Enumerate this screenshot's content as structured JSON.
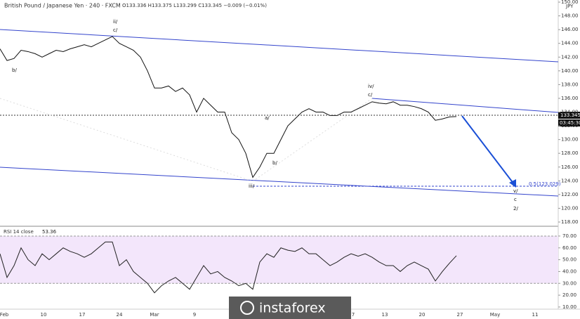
{
  "chart_data": {
    "type": "line",
    "title": "British Pound / Japanese Yen · 240 · FXCM",
    "ohlc_text": "O133.336 H133.375 L133.299 C133.345 −0.009 (−0.01%)",
    "currency": "JPY",
    "last_price_label": "133.345",
    "countdown": "03:45:30",
    "fib_label": "0.5(123.029)",
    "annotations": [
      "ii/",
      "c/",
      "b/",
      "iv/",
      "c/",
      "a/",
      "b/",
      "iii/",
      "v/",
      "c",
      "2/"
    ],
    "watermark": "instaforex",
    "xlabels": [
      "Feb",
      "10",
      "17",
      "24",
      "Mar",
      "9",
      "7",
      "13",
      "20",
      "27",
      "May",
      "11"
    ],
    "ylim": [
      117.59,
      150.31
    ],
    "yticks": [
      {
        "value": 118,
        "label": "118.00"
      },
      {
        "value": 120,
        "label": "120.00"
      },
      {
        "value": 122,
        "label": "122.00"
      },
      {
        "value": 124,
        "label": "124.00"
      },
      {
        "value": 126,
        "label": "126.00"
      },
      {
        "value": 128,
        "label": "128.00"
      },
      {
        "value": 130,
        "label": "130.00"
      },
      {
        "value": 132,
        "label": "132.00"
      },
      {
        "value": 134,
        "label": "134.00"
      },
      {
        "value": 136,
        "label": "136.00"
      },
      {
        "value": 138,
        "label": "138.00"
      },
      {
        "value": 140,
        "label": "140.00"
      },
      {
        "value": 142,
        "label": "142.00"
      },
      {
        "value": 144,
        "label": "144.00"
      },
      {
        "value": 146,
        "label": "146.00"
      },
      {
        "value": 148,
        "label": "148.00"
      },
      {
        "value": 150,
        "label": "150.00"
      }
    ],
    "series": [
      {
        "name": "GBPJPY",
        "color": "#111111",
        "values": [
          143.2,
          141.5,
          141.8,
          143,
          142.8,
          142.5,
          142,
          142.5,
          143,
          142.8,
          143.2,
          143.5,
          143.8,
          143.5,
          144,
          144.5,
          145,
          144,
          143.5,
          143,
          142,
          140,
          137.5,
          137.5,
          137.8,
          137,
          137.5,
          136.5,
          134,
          136,
          135,
          134,
          134,
          131,
          130,
          128,
          124.5,
          126,
          128,
          128,
          130,
          132,
          133,
          134,
          134.5,
          134,
          134,
          133.5,
          133.5,
          134,
          134,
          134.5,
          135,
          135.5,
          135.3,
          135.2,
          135.5,
          135,
          135,
          134.8,
          134.5,
          134,
          132.8,
          133,
          133.3,
          133.345
        ]
      }
    ],
    "rsi": {
      "title": "RSI 14 close",
      "last_label": "53.36",
      "color": "#222222",
      "band_color": "#f3e6fb",
      "ylim": [
        5.2,
        76.5
      ],
      "band": [
        30,
        70
      ],
      "yticks": [
        {
          "value": 10,
          "label": "10.00"
        },
        {
          "value": 20,
          "label": "20.00"
        },
        {
          "value": 30,
          "label": "30.00"
        },
        {
          "value": 40,
          "label": "40.00"
        },
        {
          "value": 50,
          "label": "50.00"
        },
        {
          "value": 60,
          "label": "60.00"
        },
        {
          "value": 70,
          "label": "70.00"
        }
      ],
      "values": [
        55,
        35,
        45,
        60,
        50,
        45,
        55,
        50,
        55,
        60,
        57,
        55,
        52,
        55,
        60,
        65,
        65,
        45,
        50,
        40,
        35,
        30,
        22,
        28,
        32,
        35,
        30,
        25,
        35,
        45,
        38,
        40,
        35,
        32,
        28,
        30,
        25,
        48,
        55,
        52,
        60,
        58,
        57,
        60,
        55,
        55,
        50,
        45,
        48,
        52,
        55,
        53,
        55,
        52,
        48,
        45,
        45,
        40,
        45,
        48,
        45,
        42,
        32,
        40,
        47,
        53.36
      ]
    }
  }
}
